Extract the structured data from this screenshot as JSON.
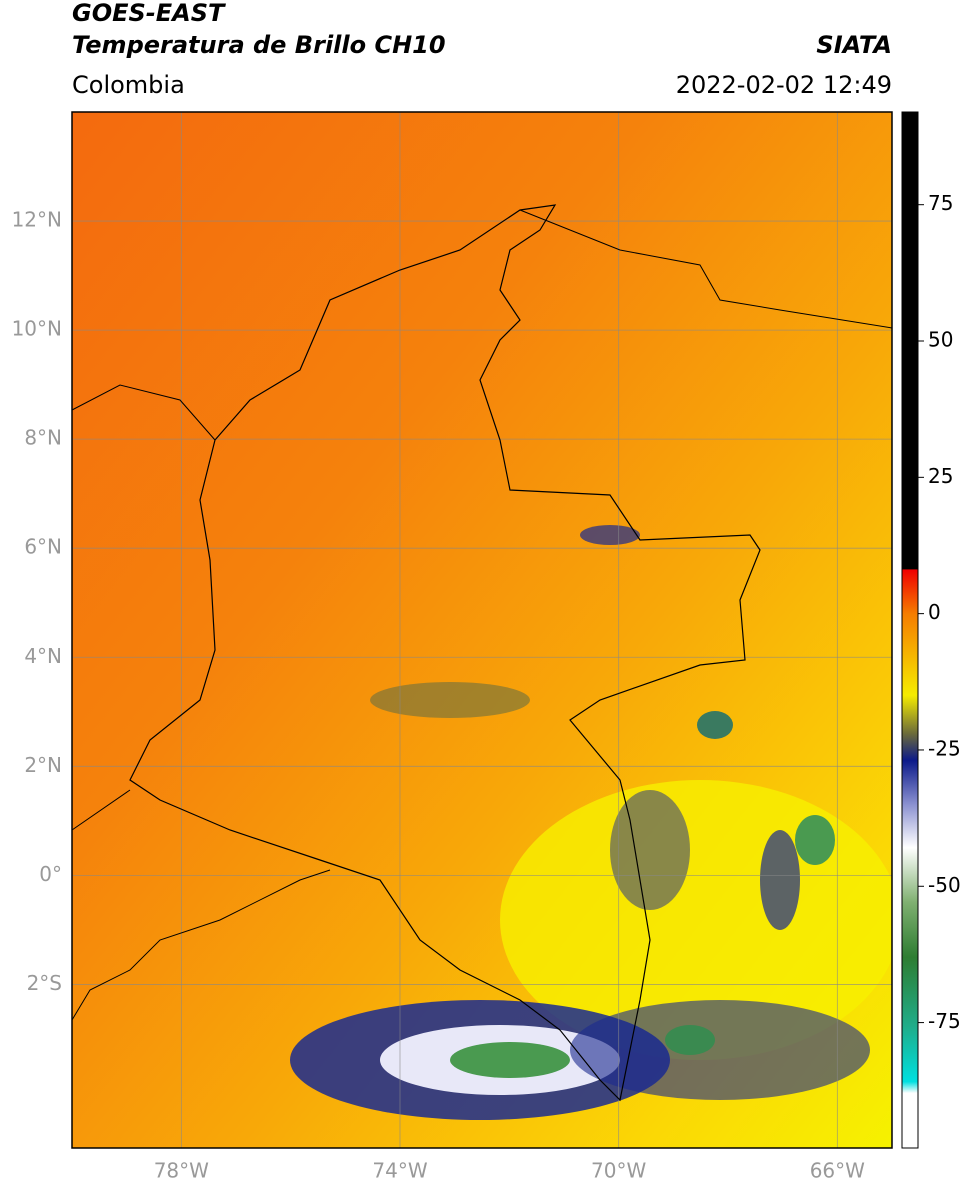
{
  "header": {
    "title": "GOES-EAST",
    "subtitle": "Temperatura de Brillo CH10",
    "region": "Colombia",
    "source": "SIATA",
    "datetime": "2022-02-02 12:49"
  },
  "map": {
    "lon_range": [
      -80,
      -65
    ],
    "lat_range": [
      -5,
      14
    ],
    "lat_ticks": [
      {
        "value": 12,
        "label": "12°N"
      },
      {
        "value": 10,
        "label": "10°N"
      },
      {
        "value": 8,
        "label": "8°N"
      },
      {
        "value": 6,
        "label": "6°N"
      },
      {
        "value": 4,
        "label": "4°N"
      },
      {
        "value": 2,
        "label": "2°N"
      },
      {
        "value": 0,
        "label": "0°"
      },
      {
        "value": -2,
        "label": "2°S"
      }
    ],
    "lon_ticks": [
      {
        "value": -78,
        "label": "78°W"
      },
      {
        "value": -74,
        "label": "74°W"
      },
      {
        "value": -70,
        "label": "70°W"
      },
      {
        "value": -66,
        "label": "66°W"
      }
    ]
  },
  "colorbar": {
    "range": [
      -98,
      92
    ],
    "ticks": [
      75,
      50,
      25,
      0,
      -25,
      -50,
      -75
    ]
  }
}
